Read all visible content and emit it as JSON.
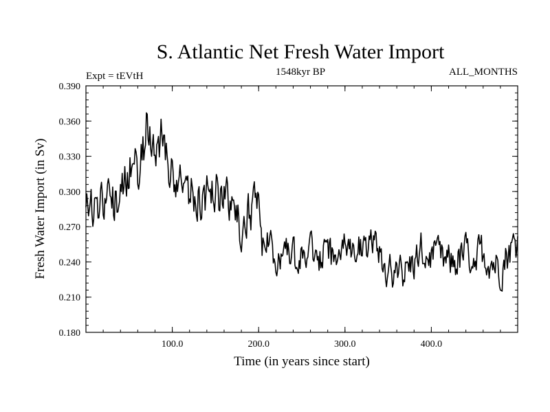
{
  "chart_data": {
    "type": "line",
    "title": "S. Atlantic Net Fresh Water Import",
    "subtitle_left": "Expt = tEVtH",
    "subtitle_center": "1548kyr BP",
    "subtitle_right": "ALL_MONTHS",
    "xlabel": "Time (in years since start)",
    "ylabel": "Fresh Water Import (in Sv)",
    "xlim": [
      0,
      500
    ],
    "ylim": [
      0.18,
      0.39
    ],
    "x_ticks": [
      100,
      200,
      300,
      400
    ],
    "x_tick_labels": [
      "100.0",
      "200.0",
      "300.0",
      "400.0"
    ],
    "y_ticks": [
      0.18,
      0.21,
      0.24,
      0.27,
      0.3,
      0.33,
      0.36,
      0.39
    ],
    "y_tick_labels": [
      "0.180",
      "0.210",
      "0.240",
      "0.270",
      "0.300",
      "0.330",
      "0.360",
      "0.390"
    ],
    "grid": false,
    "series": [
      {
        "name": "Fresh Water Import",
        "color": "#000000",
        "x": [
          0,
          10,
          20,
          30,
          40,
          50,
          60,
          70,
          80,
          90,
          100,
          110,
          120,
          130,
          140,
          150,
          160,
          170,
          180,
          190,
          200,
          210,
          220,
          230,
          240,
          250,
          260,
          270,
          280,
          290,
          300,
          310,
          320,
          330,
          340,
          350,
          360,
          370,
          380,
          390,
          400,
          410,
          420,
          430,
          440,
          450,
          460,
          470,
          480,
          490,
          500
        ],
        "y": [
          0.288,
          0.292,
          0.298,
          0.294,
          0.285,
          0.325,
          0.318,
          0.335,
          0.338,
          0.345,
          0.32,
          0.318,
          0.3,
          0.295,
          0.3,
          0.298,
          0.287,
          0.285,
          0.27,
          0.285,
          0.282,
          0.258,
          0.248,
          0.244,
          0.241,
          0.244,
          0.25,
          0.245,
          0.243,
          0.246,
          0.25,
          0.248,
          0.249,
          0.252,
          0.245,
          0.23,
          0.228,
          0.232,
          0.24,
          0.247,
          0.245,
          0.24,
          0.238,
          0.241,
          0.247,
          0.245,
          0.248,
          0.241,
          0.236,
          0.25,
          0.258
        ]
      }
    ]
  }
}
